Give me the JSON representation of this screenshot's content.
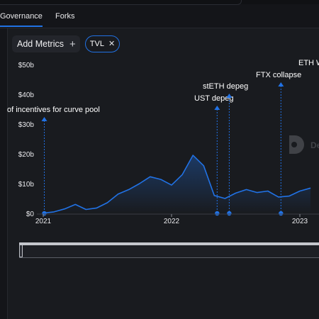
{
  "tabs": {
    "governance": "Governance",
    "forks": "Forks"
  },
  "toolbar": {
    "add_metrics": "Add Metrics",
    "plus_icon": "+",
    "tvl_label": "TVL",
    "close_icon": "✕"
  },
  "watermark": {
    "text": "De"
  },
  "colors": {
    "accent": "#2172e5",
    "background": "#191b1f"
  },
  "chart_data": {
    "type": "area",
    "y_ticks": [
      "$0",
      "$10b",
      "$20b",
      "$30b",
      "$40b",
      "$50b"
    ],
    "ylim": [
      0,
      50
    ],
    "x_ticks": [
      "2021",
      "2022",
      "2023"
    ],
    "series": [
      {
        "name": "TVL",
        "x": [
          "2021-01",
          "2021-02",
          "2021-03",
          "2021-04",
          "2021-05",
          "2021-06",
          "2021-07",
          "2021-08",
          "2021-09",
          "2021-10",
          "2021-11",
          "2021-12",
          "2022-01",
          "2022-02",
          "2022-03",
          "2022-04",
          "2022-05",
          "2022-06",
          "2022-07",
          "2022-08",
          "2022-09",
          "2022-10",
          "2022-11",
          "2022-12",
          "2023-01",
          "2023-02"
        ],
        "values": [
          0.1,
          0.5,
          1.5,
          3.0,
          1.3,
          1.8,
          3.6,
          6.5,
          8.0,
          10.0,
          12.3,
          11.4,
          9.5,
          13.0,
          19.5,
          16.0,
          6.0,
          5.0,
          6.8,
          8.0,
          7.0,
          7.5,
          5.5,
          5.8,
          7.5,
          8.5
        ]
      }
    ],
    "events": [
      {
        "label": "of incentives for curve pool",
        "date": "2021-01-04"
      },
      {
        "label": "UST depeg",
        "date": "2022-05-09"
      },
      {
        "label": "stETH depeg",
        "date": "2022-06-13"
      },
      {
        "label": "FTX collapse",
        "date": "2022-11-08"
      },
      {
        "label": "ETH W",
        "date": "2023-03-01"
      }
    ]
  }
}
